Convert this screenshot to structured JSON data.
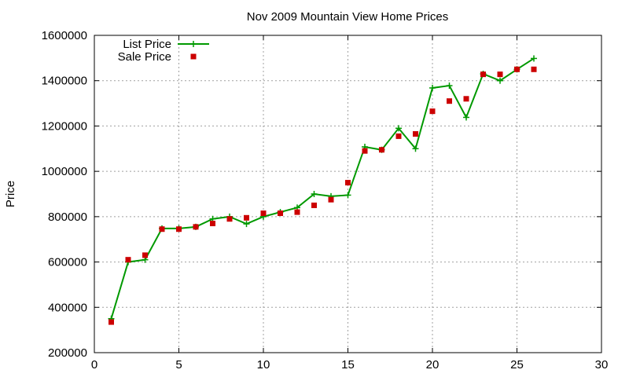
{
  "chart_data": {
    "type": "line",
    "title": "Nov 2009 Mountain View Home Prices",
    "xlabel": "",
    "ylabel": "Price",
    "xlim": [
      0,
      30
    ],
    "ylim": [
      200000,
      1600000
    ],
    "x_ticks": [
      "0",
      "5",
      "10",
      "15",
      "20",
      "25",
      "30"
    ],
    "y_ticks": [
      "200000",
      "400000",
      "600000",
      "800000",
      "1000000",
      "1200000",
      "1400000",
      "1600000"
    ],
    "grid": true,
    "legend_position": "top-left",
    "x": [
      1,
      2,
      3,
      4,
      5,
      6,
      7,
      8,
      9,
      10,
      11,
      12,
      13,
      14,
      15,
      16,
      17,
      18,
      19,
      20,
      21,
      22,
      23,
      24,
      25,
      26
    ],
    "series": [
      {
        "name": "List Price",
        "style": "linespoints",
        "color": "#009900",
        "marker": "plus",
        "values": [
          350000,
          600000,
          610000,
          748000,
          748000,
          755000,
          790000,
          800000,
          768000,
          800000,
          820000,
          840000,
          900000,
          890000,
          895000,
          1108000,
          1095000,
          1190000,
          1100000,
          1368000,
          1378000,
          1238000,
          1430000,
          1400000,
          1450000,
          1498000
        ]
      },
      {
        "name": "Sale Price",
        "style": "points",
        "color": "#cc0000",
        "marker": "square",
        "values": [
          335000,
          610000,
          630000,
          745000,
          745000,
          755000,
          770000,
          790000,
          795000,
          815000,
          815000,
          820000,
          850000,
          875000,
          950000,
          1090000,
          1095000,
          1155000,
          1165000,
          1265000,
          1310000,
          1320000,
          1428000,
          1428000,
          1450000,
          1450000
        ]
      }
    ]
  }
}
